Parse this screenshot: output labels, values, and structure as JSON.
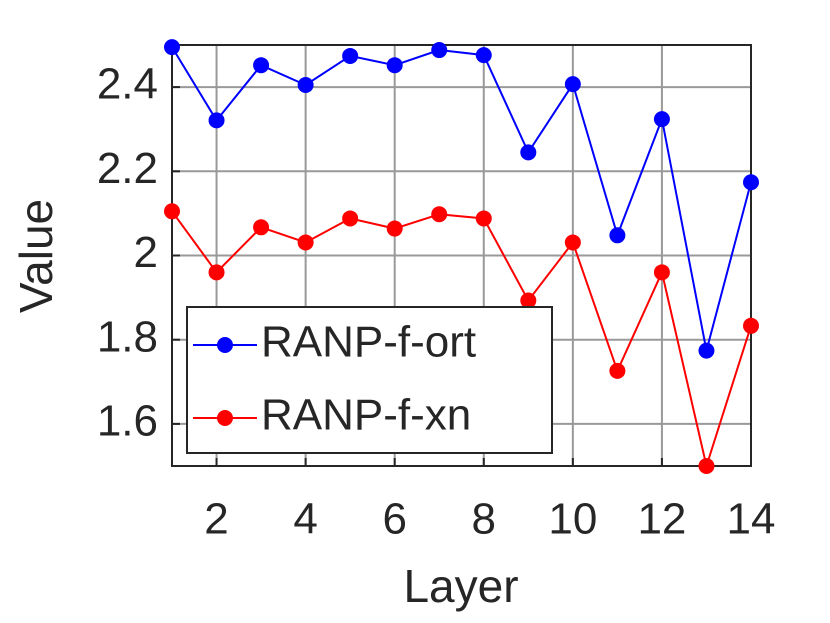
{
  "chart_data": {
    "type": "line",
    "xlabel": "Layer",
    "ylabel": "Value",
    "x": [
      1,
      2,
      3,
      4,
      5,
      6,
      7,
      8,
      9,
      10,
      11,
      12,
      13,
      14
    ],
    "series": [
      {
        "name": "RANP-f-ort",
        "color": "#0000ff",
        "values": [
          2.495,
          2.321,
          2.452,
          2.405,
          2.474,
          2.452,
          2.488,
          2.476,
          2.245,
          2.407,
          2.048,
          2.324,
          1.774,
          2.174
        ]
      },
      {
        "name": "RANP-f-xn",
        "color": "#ff0000",
        "values": [
          2.105,
          1.96,
          2.067,
          2.031,
          2.088,
          2.064,
          2.098,
          2.088,
          1.893,
          2.031,
          1.726,
          1.96,
          1.5,
          1.833
        ]
      }
    ],
    "xlim": [
      1,
      14
    ],
    "xticks": [
      2,
      4,
      6,
      8,
      10,
      12,
      14
    ],
    "ylim": [
      1.5,
      2.5
    ],
    "yticks": [
      1.6,
      1.8,
      2,
      2.2,
      2.4
    ],
    "grid": true,
    "legend": "lower left"
  }
}
